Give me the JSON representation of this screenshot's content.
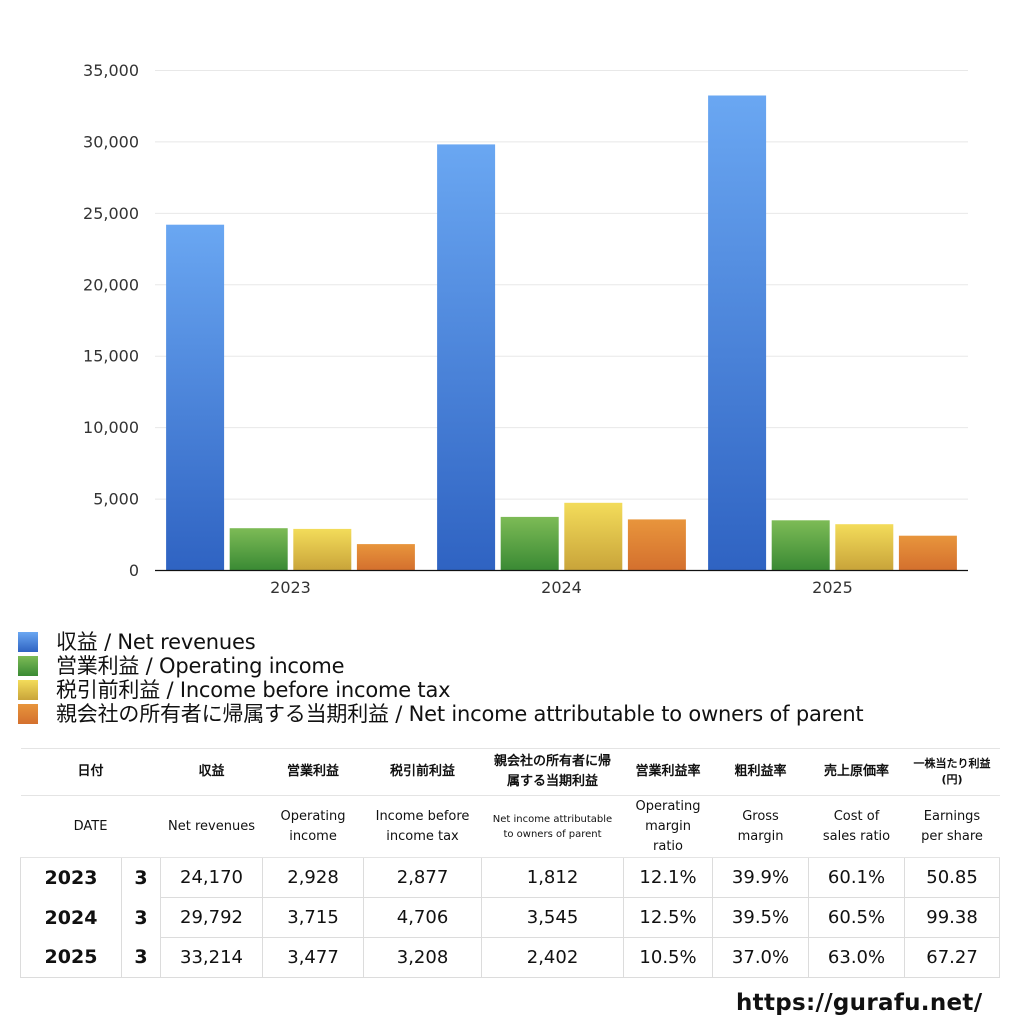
{
  "chart_data": {
    "type": "bar",
    "title": "",
    "xlabel": "",
    "ylabel": "",
    "ylim": [
      0,
      35000
    ],
    "yticks": [
      0,
      5000,
      10000,
      15000,
      20000,
      25000,
      30000,
      35000
    ],
    "ytick_labels": [
      "0",
      "5,000",
      "10,000",
      "15,000",
      "20,000",
      "25,000",
      "30,000",
      "35,000"
    ],
    "grid": true,
    "legend_position": "bottom",
    "categories": [
      "2023",
      "2024",
      "2025"
    ],
    "series": [
      {
        "name": "収益 / Net revenues",
        "color_top": "#6aa7f2",
        "color_bottom": "#2f63c2",
        "values": [
          24170,
          29792,
          33214
        ]
      },
      {
        "name": "営業利益 / Operating income",
        "color_top": "#7dbb56",
        "color_bottom": "#3a8a34",
        "values": [
          2928,
          3715,
          3477
        ]
      },
      {
        "name": "税引前利益 / Income before income tax",
        "color_top": "#f3dc5a",
        "color_bottom": "#c9a43a",
        "values": [
          2877,
          4706,
          3208
        ]
      },
      {
        "name": "親会社の所有者に帰属する当期利益 / Net income attributable to owners of parent",
        "color_top": "#e8953c",
        "color_bottom": "#d4702e",
        "values": [
          1812,
          3545,
          2402
        ]
      }
    ]
  },
  "table": {
    "header_jp": {
      "date": "日付",
      "revenues": "収益",
      "operating_income": "営業利益",
      "income_before_tax": "税引前利益",
      "net_income": "親会社の所有者に帰属する当期利益",
      "operating_margin": "営業利益率",
      "gross_margin": "粗利益率",
      "cost_ratio": "売上原価率",
      "eps": "一株当たり利益(円)"
    },
    "header_en": {
      "date": "DATE",
      "revenues": "Net revenues",
      "operating_income": "Operating income",
      "income_before_tax": "Income before income tax",
      "net_income": "Net income attributable to owners of parent",
      "operating_margin": "Operating margin ratio",
      "gross_margin": "Gross margin",
      "cost_ratio": "Cost of sales ratio",
      "eps": "Earnings per share"
    },
    "rows": [
      {
        "year": "2023",
        "month": "3",
        "revenues": "24,170",
        "operating_income": "2,928",
        "income_before_tax": "2,877",
        "net_income": "1,812",
        "operating_margin": "12.1%",
        "gross_margin": "39.9%",
        "cost_ratio": "60.1%",
        "eps": "50.85"
      },
      {
        "year": "2024",
        "month": "3",
        "revenues": "29,792",
        "operating_income": "3,715",
        "income_before_tax": "4,706",
        "net_income": "3,545",
        "operating_margin": "12.5%",
        "gross_margin": "39.5%",
        "cost_ratio": "60.5%",
        "eps": "99.38"
      },
      {
        "year": "2025",
        "month": "3",
        "revenues": "33,214",
        "operating_income": "3,477",
        "income_before_tax": "3,208",
        "net_income": "2,402",
        "operating_margin": "10.5%",
        "gross_margin": "37.0%",
        "cost_ratio": "63.0%",
        "eps": "67.27"
      }
    ]
  },
  "footer": {
    "url": "https://gurafu.net/"
  }
}
